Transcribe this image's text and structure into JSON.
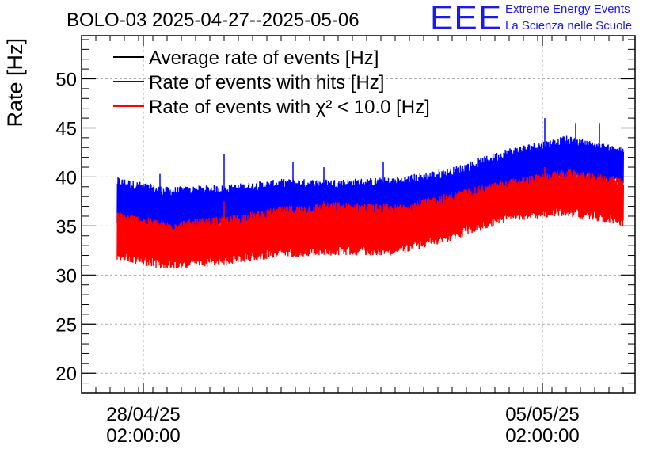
{
  "chart_data": {
    "type": "line",
    "title": "BOLO-03 2025-04-27--2025-05-06",
    "ylabel": "Rate [Hz]",
    "xlabel": "",
    "x_axis": {
      "type": "datetime",
      "range": [
        "2025-04-27T00:00:00",
        "2025-05-06T17:00:00"
      ],
      "ticks": [
        {
          "x": "2025-04-28T02:00:00",
          "label_date": "28/04/25",
          "label_time": "02:00:00"
        },
        {
          "x": "2025-05-05T02:00:00",
          "label_date": "05/05/25",
          "label_time": "02:00:00"
        }
      ]
    },
    "ylim": [
      18,
      54.4
    ],
    "yticks": [
      20,
      25,
      30,
      35,
      40,
      45,
      50
    ],
    "grid": true,
    "legend_position": "top-left",
    "series": [
      {
        "name": "Average rate of events [Hz]",
        "color": "#000000",
        "x": [
          "2025-04-27T15:00:00",
          "2025-05-06T12:00:00"
        ],
        "y": [
          37.5,
          41.5
        ]
      },
      {
        "name": "Rate of events with hits [Hz]",
        "color": "#0000ff",
        "x": [
          "2025-04-27T15:00:00",
          "2025-04-28T12:00:00",
          "2025-04-29T12:00:00",
          "2025-04-30T12:00:00",
          "2025-05-01T12:00:00",
          "2025-05-02T12:00:00",
          "2025-05-03T12:00:00",
          "2025-05-04T12:00:00",
          "2025-05-05T12:00:00",
          "2025-05-06T12:00:00"
        ],
        "y": [
          37.5,
          36.5,
          37.0,
          37.5,
          37.5,
          37.5,
          38.5,
          40.5,
          42.0,
          41.5
        ],
        "range_low": [
          35.0,
          34.2,
          34.4,
          34.8,
          34.8,
          34.8,
          36.0,
          38.0,
          39.5,
          39.0
        ],
        "range_high": [
          40.0,
          39.0,
          39.2,
          39.8,
          39.8,
          40.0,
          41.0,
          43.0,
          44.2,
          43.0
        ],
        "spikes": [
          {
            "x": "2025-04-28T09:00:00",
            "y": 40.3
          },
          {
            "x": "2025-04-29T12:00:00",
            "y": 42.3
          },
          {
            "x": "2025-04-30T17:00:00",
            "y": 41.5
          },
          {
            "x": "2025-05-01T06:00:00",
            "y": 41.0
          },
          {
            "x": "2025-05-02T07:00:00",
            "y": 41.5
          },
          {
            "x": "2025-05-03T04:00:00",
            "y": 40.5
          },
          {
            "x": "2025-05-05T03:00:00",
            "y": 46.0
          },
          {
            "x": "2025-05-05T16:00:00",
            "y": 45.5
          },
          {
            "x": "2025-05-06T02:00:00",
            "y": 45.5
          }
        ]
      },
      {
        "name": "Rate of events with χ² < 10.0 [Hz]",
        "color": "#ff0000",
        "x": [
          "2025-04-27T15:00:00",
          "2025-04-28T12:00:00",
          "2025-04-29T12:00:00",
          "2025-04-30T12:00:00",
          "2025-05-01T12:00:00",
          "2025-05-02T12:00:00",
          "2025-05-03T12:00:00",
          "2025-05-04T12:00:00",
          "2025-05-05T12:00:00",
          "2025-05-06T12:00:00"
        ],
        "y": [
          34.0,
          33.0,
          33.5,
          34.5,
          34.8,
          34.5,
          36.0,
          37.5,
          38.5,
          37.5
        ],
        "range_low": [
          31.5,
          30.5,
          31.0,
          31.8,
          32.0,
          32.0,
          33.5,
          35.5,
          36.0,
          35.0
        ],
        "range_high": [
          36.5,
          35.5,
          36.0,
          37.0,
          37.5,
          37.2,
          38.5,
          39.8,
          40.8,
          40.0
        ],
        "spikes": [
          {
            "x": "2025-04-29T12:00:00",
            "y": 37.5
          },
          {
            "x": "2025-05-01T06:00:00",
            "y": 37.5
          },
          {
            "x": "2025-05-05T03:00:00",
            "y": 41.0
          }
        ]
      }
    ]
  },
  "logo": {
    "mark": "EEE",
    "line1": "Extreme Energy Events",
    "line2": "La Scienza nelle Scuole",
    "color": "#1a1aee"
  }
}
